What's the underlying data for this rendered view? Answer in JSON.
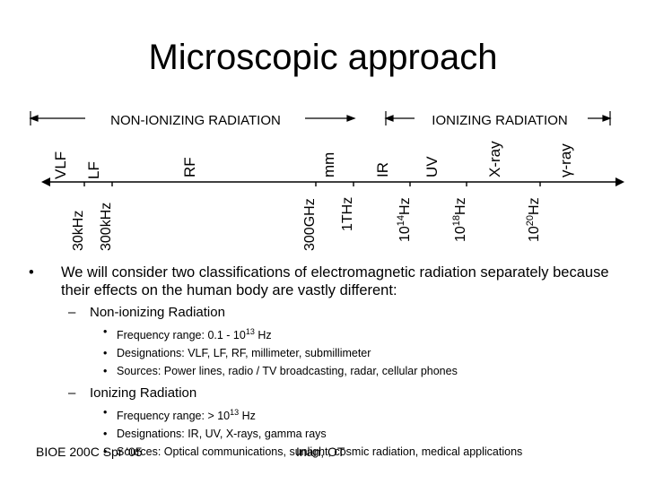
{
  "title": "Microscopic approach",
  "spectrum": {
    "non_ionizing_label": "NON-IONIZING RADIATION",
    "ionizing_label": "IONIZING RADIATION",
    "bands": {
      "vlf": "VLF",
      "lf": "LF",
      "rf": "RF",
      "mm": "mm",
      "ir": "IR",
      "uv": "UV",
      "xray": "X-ray",
      "gamma": "γ-ray"
    },
    "frequencies": {
      "f30khz": "30kHz",
      "f300khz": "300kHz",
      "f300ghz": "300GHz",
      "f1thz": "1THz",
      "f10_14": {
        "base": "10",
        "exp": "14",
        "unit": "Hz"
      },
      "f10_18": {
        "base": "10",
        "exp": "18",
        "unit": "Hz"
      },
      "f10_20": {
        "base": "10",
        "exp": "20",
        "unit": "Hz"
      }
    }
  },
  "body": {
    "main_bullet": "We will consider two classifications of electromagnetic radiation separately because their effects on the human body are vastly different:",
    "non_ionizing": {
      "heading": "Non-ionizing Radiation",
      "freq_prefix": "Frequency range:  0.1 - 10",
      "freq_exp": "13",
      "freq_suffix": " Hz",
      "designations": "Designations: VLF, LF, RF, millimeter, submillimeter",
      "sources": "Sources: Power lines, radio / TV broadcasting, radar, cellular phones"
    },
    "ionizing": {
      "heading": "Ionizing Radiation",
      "freq_prefix": "Frequency range: > 10",
      "freq_exp": "13",
      "freq_suffix": " Hz",
      "designations": "Designations: IR, UV, X-rays, gamma rays",
      "sources": "Sources: Optical communications, sunlight, cosmic radiation, medical applications"
    }
  },
  "footer": {
    "left": "BIOE 200C Spr '05",
    "right": "Inan, OT"
  }
}
